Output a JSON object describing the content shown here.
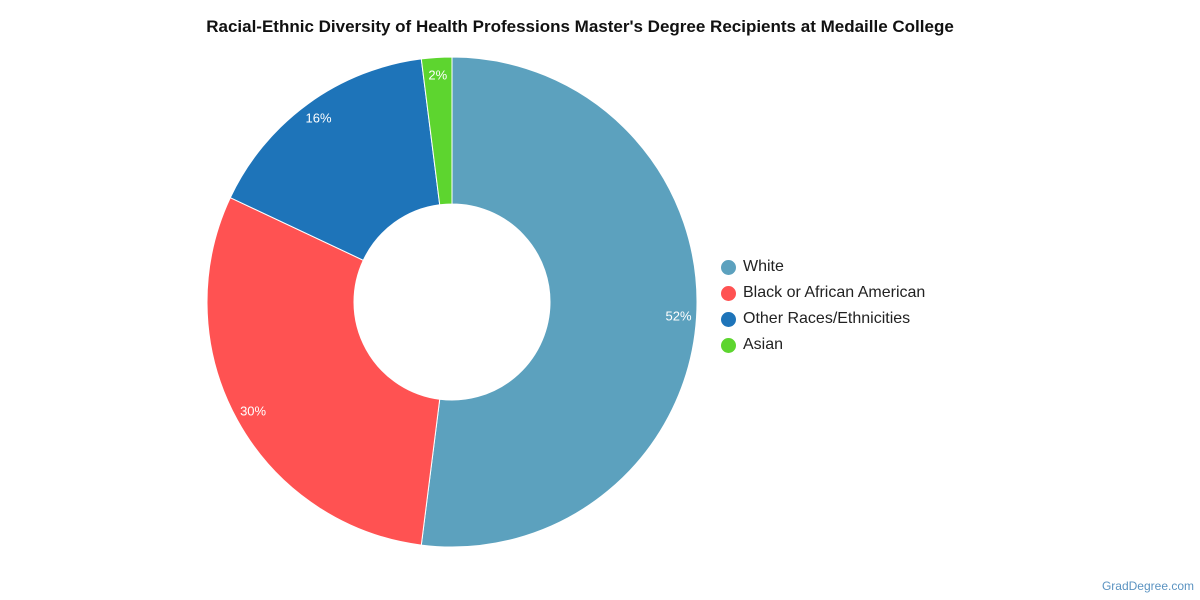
{
  "chart_data": {
    "type": "pie",
    "title": "Racial-Ethnic Diversity of Health Professions Master's Degree Recipients at Medaille College",
    "categories": [
      "White",
      "Black or African American",
      "Other Races/Ethnicities",
      "Asian"
    ],
    "values": [
      52,
      30,
      16,
      2
    ],
    "data_labels": [
      "52%",
      "30%",
      "16%",
      "2%"
    ],
    "colors": [
      "#5ca1be",
      "#ff5252",
      "#1e74b9",
      "#5dd52f"
    ],
    "legend_position": "right",
    "style": "donut"
  },
  "credit": "GradDegree.com"
}
